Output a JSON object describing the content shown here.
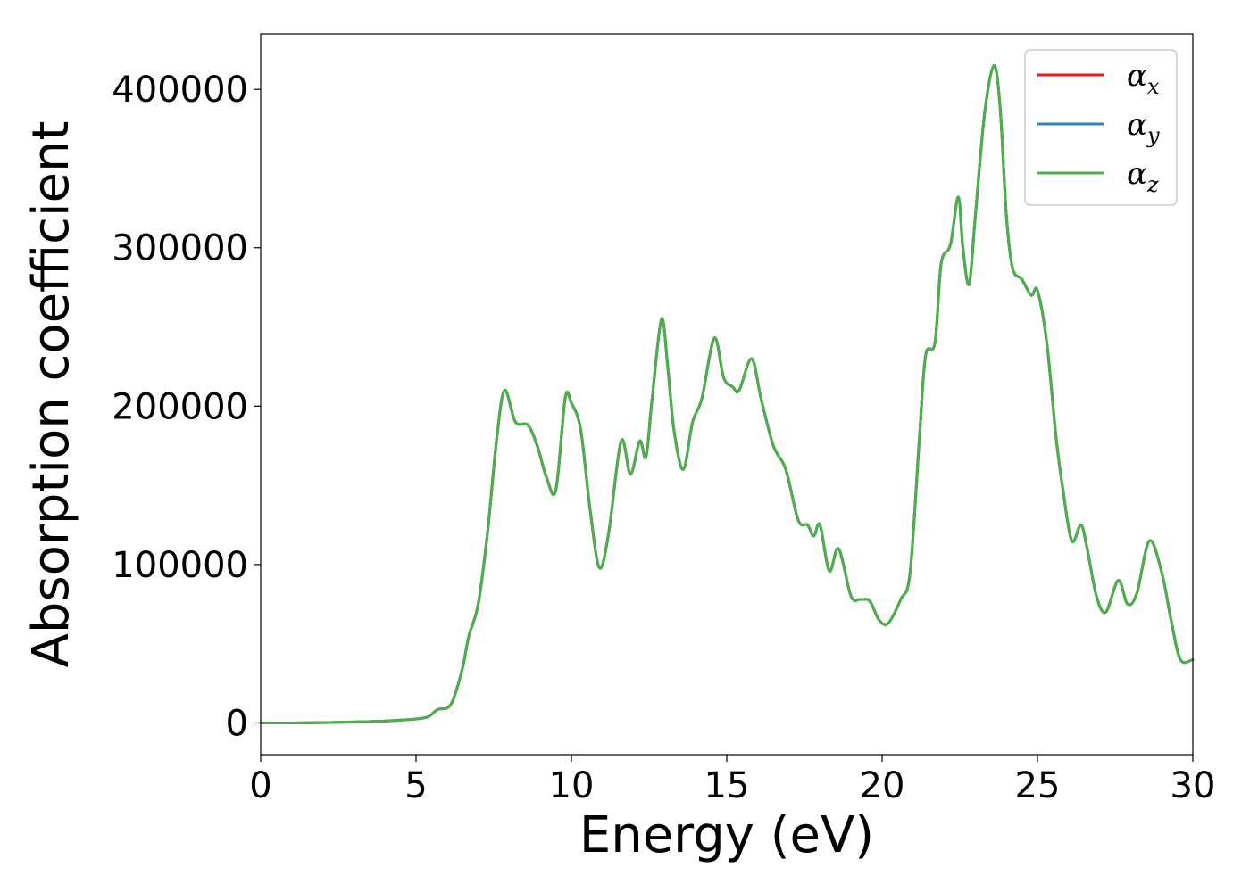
{
  "chart_data": {
    "type": "line",
    "title": "",
    "xlabel": "Energy (eV)",
    "ylabel": "Absorption coefficient",
    "xlim": [
      0,
      30
    ],
    "ylim": [
      -20000,
      435000
    ],
    "x_ticks": [
      0,
      5,
      10,
      15,
      20,
      25,
      30
    ],
    "y_ticks": [
      0,
      100000,
      200000,
      300000,
      400000
    ],
    "grid": false,
    "legend_position": "top-right",
    "series": [
      {
        "name": "α",
        "subscript": "x",
        "color": "#e41a1c"
      },
      {
        "name": "α",
        "subscript": "y",
        "color": "#377eb8"
      },
      {
        "name": "α",
        "subscript": "z",
        "color": "#4daf4a"
      }
    ],
    "points": [
      [
        0,
        0
      ],
      [
        1,
        0
      ],
      [
        2,
        200
      ],
      [
        3,
        600
      ],
      [
        4,
        1200
      ],
      [
        4.5,
        1800
      ],
      [
        5,
        2500
      ],
      [
        5.4,
        4000
      ],
      [
        5.7,
        8500
      ],
      [
        6.0,
        9500
      ],
      [
        6.2,
        15000
      ],
      [
        6.5,
        35000
      ],
      [
        6.7,
        55000
      ],
      [
        7.0,
        75000
      ],
      [
        7.3,
        120000
      ],
      [
        7.6,
        180000
      ],
      [
        7.85,
        210000
      ],
      [
        8.2,
        190000
      ],
      [
        8.6,
        188000
      ],
      [
        8.9,
        175000
      ],
      [
        9.2,
        155000
      ],
      [
        9.5,
        147000
      ],
      [
        9.8,
        205000
      ],
      [
        10.0,
        202000
      ],
      [
        10.3,
        185000
      ],
      [
        10.6,
        135000
      ],
      [
        10.9,
        98000
      ],
      [
        11.2,
        120000
      ],
      [
        11.6,
        178000
      ],
      [
        11.9,
        157000
      ],
      [
        12.2,
        178000
      ],
      [
        12.4,
        168000
      ],
      [
        12.6,
        205000
      ],
      [
        12.9,
        255000
      ],
      [
        13.1,
        225000
      ],
      [
        13.3,
        185000
      ],
      [
        13.6,
        160000
      ],
      [
        13.9,
        190000
      ],
      [
        14.2,
        205000
      ],
      [
        14.6,
        243000
      ],
      [
        14.9,
        218000
      ],
      [
        15.2,
        212000
      ],
      [
        15.4,
        210000
      ],
      [
        15.8,
        230000
      ],
      [
        16.1,
        205000
      ],
      [
        16.5,
        175000
      ],
      [
        16.9,
        160000
      ],
      [
        17.3,
        128000
      ],
      [
        17.6,
        125000
      ],
      [
        17.8,
        118000
      ],
      [
        18.0,
        125000
      ],
      [
        18.3,
        96000
      ],
      [
        18.6,
        110000
      ],
      [
        19.0,
        80000
      ],
      [
        19.3,
        78000
      ],
      [
        19.6,
        77000
      ],
      [
        19.9,
        65000
      ],
      [
        20.2,
        63000
      ],
      [
        20.6,
        78000
      ],
      [
        20.9,
        95000
      ],
      [
        21.2,
        180000
      ],
      [
        21.4,
        232000
      ],
      [
        21.7,
        240000
      ],
      [
        21.9,
        290000
      ],
      [
        22.2,
        302000
      ],
      [
        22.45,
        332000
      ],
      [
        22.6,
        300000
      ],
      [
        22.8,
        277000
      ],
      [
        23.0,
        320000
      ],
      [
        23.3,
        385000
      ],
      [
        23.6,
        415000
      ],
      [
        23.8,
        388000
      ],
      [
        24.0,
        320000
      ],
      [
        24.2,
        287000
      ],
      [
        24.5,
        280000
      ],
      [
        24.8,
        270000
      ],
      [
        25.0,
        273000
      ],
      [
        25.3,
        240000
      ],
      [
        25.6,
        180000
      ],
      [
        25.8,
        150000
      ],
      [
        26.1,
        115000
      ],
      [
        26.4,
        125000
      ],
      [
        26.6,
        110000
      ],
      [
        26.9,
        80000
      ],
      [
        27.2,
        70000
      ],
      [
        27.6,
        90000
      ],
      [
        27.9,
        75000
      ],
      [
        28.2,
        82000
      ],
      [
        28.6,
        115000
      ],
      [
        29.0,
        95000
      ],
      [
        29.3,
        65000
      ],
      [
        29.6,
        40000
      ],
      [
        30.0,
        40000
      ]
    ]
  }
}
